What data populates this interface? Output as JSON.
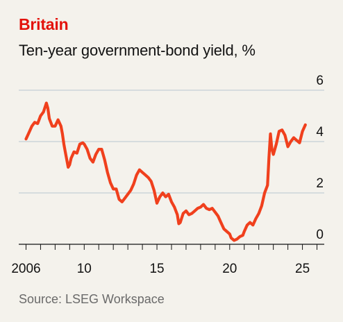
{
  "colors": {
    "accent": "#e3120b",
    "line": "#f0401d",
    "text": "#121212",
    "source": "#6a6a6a",
    "grid": "#b7c6cf",
    "axis": "#121212",
    "background": "#f4f2ec"
  },
  "chart_data": {
    "type": "line",
    "title": "Britain",
    "subtitle": "Ten-year government-bond yield, %",
    "source": "Source: LSEG Workspace",
    "xlim": [
      2005.5,
      2026.5
    ],
    "ylim": [
      0,
      6
    ],
    "x_ticks": [
      {
        "value": 2006,
        "label": "2006"
      },
      {
        "value": 2010,
        "label": "10"
      },
      {
        "value": 2015,
        "label": "15"
      },
      {
        "value": 2020,
        "label": "20"
      },
      {
        "value": 2025,
        "label": "25"
      }
    ],
    "y_ticks": [
      {
        "value": 0,
        "label": "0"
      },
      {
        "value": 2,
        "label": "2"
      },
      {
        "value": 4,
        "label": "4"
      },
      {
        "value": 6,
        "label": "6"
      }
    ],
    "grid": true,
    "series": [
      {
        "name": "",
        "x": [
          2006.0,
          2006.2,
          2006.4,
          2006.6,
          2006.8,
          2007.0,
          2007.2,
          2007.4,
          2007.5,
          2007.6,
          2007.8,
          2008.0,
          2008.2,
          2008.4,
          2008.5,
          2008.6,
          2008.7,
          2008.8,
          2008.9,
          2009.0,
          2009.1,
          2009.3,
          2009.5,
          2009.7,
          2009.9,
          2010.0,
          2010.2,
          2010.4,
          2010.6,
          2010.8,
          2011.0,
          2011.2,
          2011.4,
          2011.6,
          2011.8,
          2012.0,
          2012.2,
          2012.4,
          2012.6,
          2012.8,
          2013.0,
          2013.2,
          2013.4,
          2013.6,
          2013.8,
          2014.0,
          2014.2,
          2014.4,
          2014.6,
          2014.8,
          2015.0,
          2015.2,
          2015.4,
          2015.6,
          2015.8,
          2016.0,
          2016.2,
          2016.4,
          2016.5,
          2016.6,
          2016.8,
          2017.0,
          2017.2,
          2017.4,
          2017.6,
          2017.8,
          2018.0,
          2018.2,
          2018.4,
          2018.6,
          2018.8,
          2019.0,
          2019.2,
          2019.4,
          2019.6,
          2019.8,
          2020.0,
          2020.1,
          2020.3,
          2020.5,
          2020.7,
          2020.9,
          2021.0,
          2021.2,
          2021.4,
          2021.6,
          2021.8,
          2022.0,
          2022.2,
          2022.4,
          2022.6,
          2022.7,
          2022.8,
          2022.9,
          2023.0,
          2023.2,
          2023.4,
          2023.6,
          2023.8,
          2024.0,
          2024.2,
          2024.4,
          2024.6,
          2024.8,
          2025.0,
          2025.2
        ],
        "values": [
          4.1,
          4.35,
          4.6,
          4.75,
          4.7,
          5.0,
          5.15,
          5.5,
          5.3,
          4.9,
          4.6,
          4.6,
          4.85,
          4.6,
          4.3,
          3.9,
          3.6,
          3.3,
          3.0,
          3.1,
          3.35,
          3.6,
          3.55,
          3.9,
          3.95,
          3.9,
          3.7,
          3.35,
          3.2,
          3.5,
          3.7,
          3.7,
          3.3,
          2.8,
          2.4,
          2.15,
          2.15,
          1.75,
          1.65,
          1.8,
          1.95,
          2.1,
          2.35,
          2.7,
          2.9,
          2.8,
          2.7,
          2.6,
          2.45,
          2.1,
          1.6,
          1.85,
          2.0,
          1.85,
          1.95,
          1.65,
          1.45,
          1.15,
          0.8,
          0.85,
          1.2,
          1.3,
          1.15,
          1.2,
          1.3,
          1.4,
          1.45,
          1.55,
          1.4,
          1.35,
          1.4,
          1.25,
          1.1,
          0.85,
          0.6,
          0.5,
          0.4,
          0.25,
          0.15,
          0.2,
          0.3,
          0.35,
          0.5,
          0.75,
          0.85,
          0.75,
          1.0,
          1.2,
          1.5,
          2.0,
          2.3,
          3.4,
          4.3,
          3.7,
          3.5,
          3.9,
          4.4,
          4.45,
          4.25,
          3.8,
          4.0,
          4.15,
          4.05,
          3.95,
          4.4,
          4.65
        ]
      }
    ]
  }
}
